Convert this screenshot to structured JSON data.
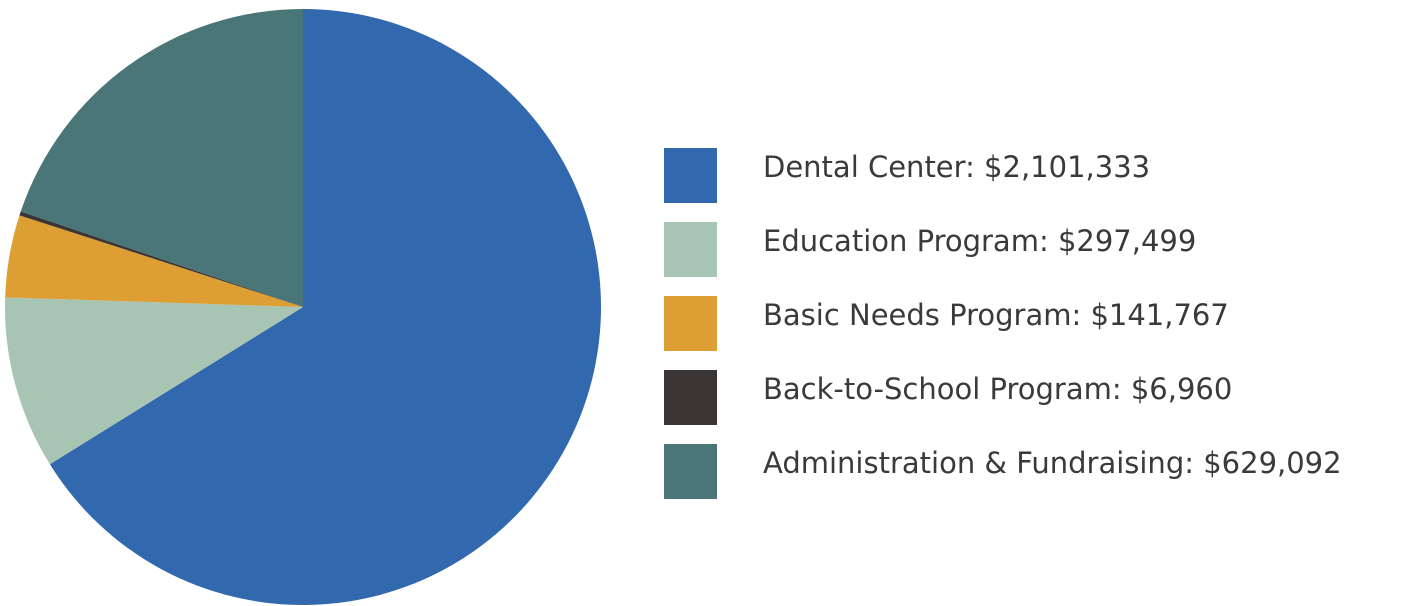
{
  "chart_data": {
    "type": "pie",
    "title": "",
    "slices": [
      {
        "label": "Dental Center: $2,101,333",
        "value": 2101333,
        "color": "#3268ad"
      },
      {
        "label": "Education Program: $297,499",
        "value": 297499,
        "color": "#a8c4b3"
      },
      {
        "label": "Basic Needs Program: $141,767",
        "value": 141767,
        "color": "#dd9e33"
      },
      {
        "label": "Back-to-School Program: $6,960",
        "value": 6960,
        "color": "#3b3536"
      },
      {
        "label": "Administration & Fundraising: $629,092",
        "value": 629092,
        "color": "#4a7678"
      }
    ],
    "start_angle": "top",
    "direction": "clockwise",
    "legend": "right"
  }
}
